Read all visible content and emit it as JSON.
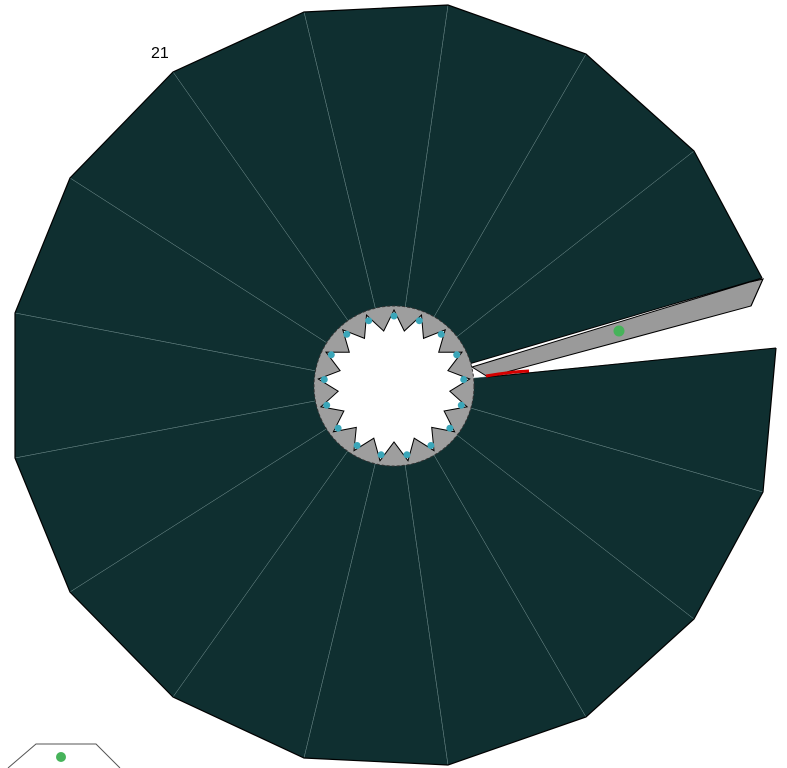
{
  "hud": {
    "counter": "21"
  },
  "colors": {
    "segment_fill": "#0f2f30",
    "segment_stroke": "#000000",
    "seam_stroke": "#6f8c8c",
    "spike_fill": "#9a9a9a",
    "inner_dot": "#3aa6b9",
    "player_dot": "#46b35a",
    "highlight": "#d40000",
    "background": "#ffffff"
  },
  "ring": {
    "segments": 16,
    "missing_segment": 1
  },
  "player": {
    "icon": "green-dot-player-icon"
  },
  "preview": {
    "icon": "next-piece-preview-icon"
  }
}
